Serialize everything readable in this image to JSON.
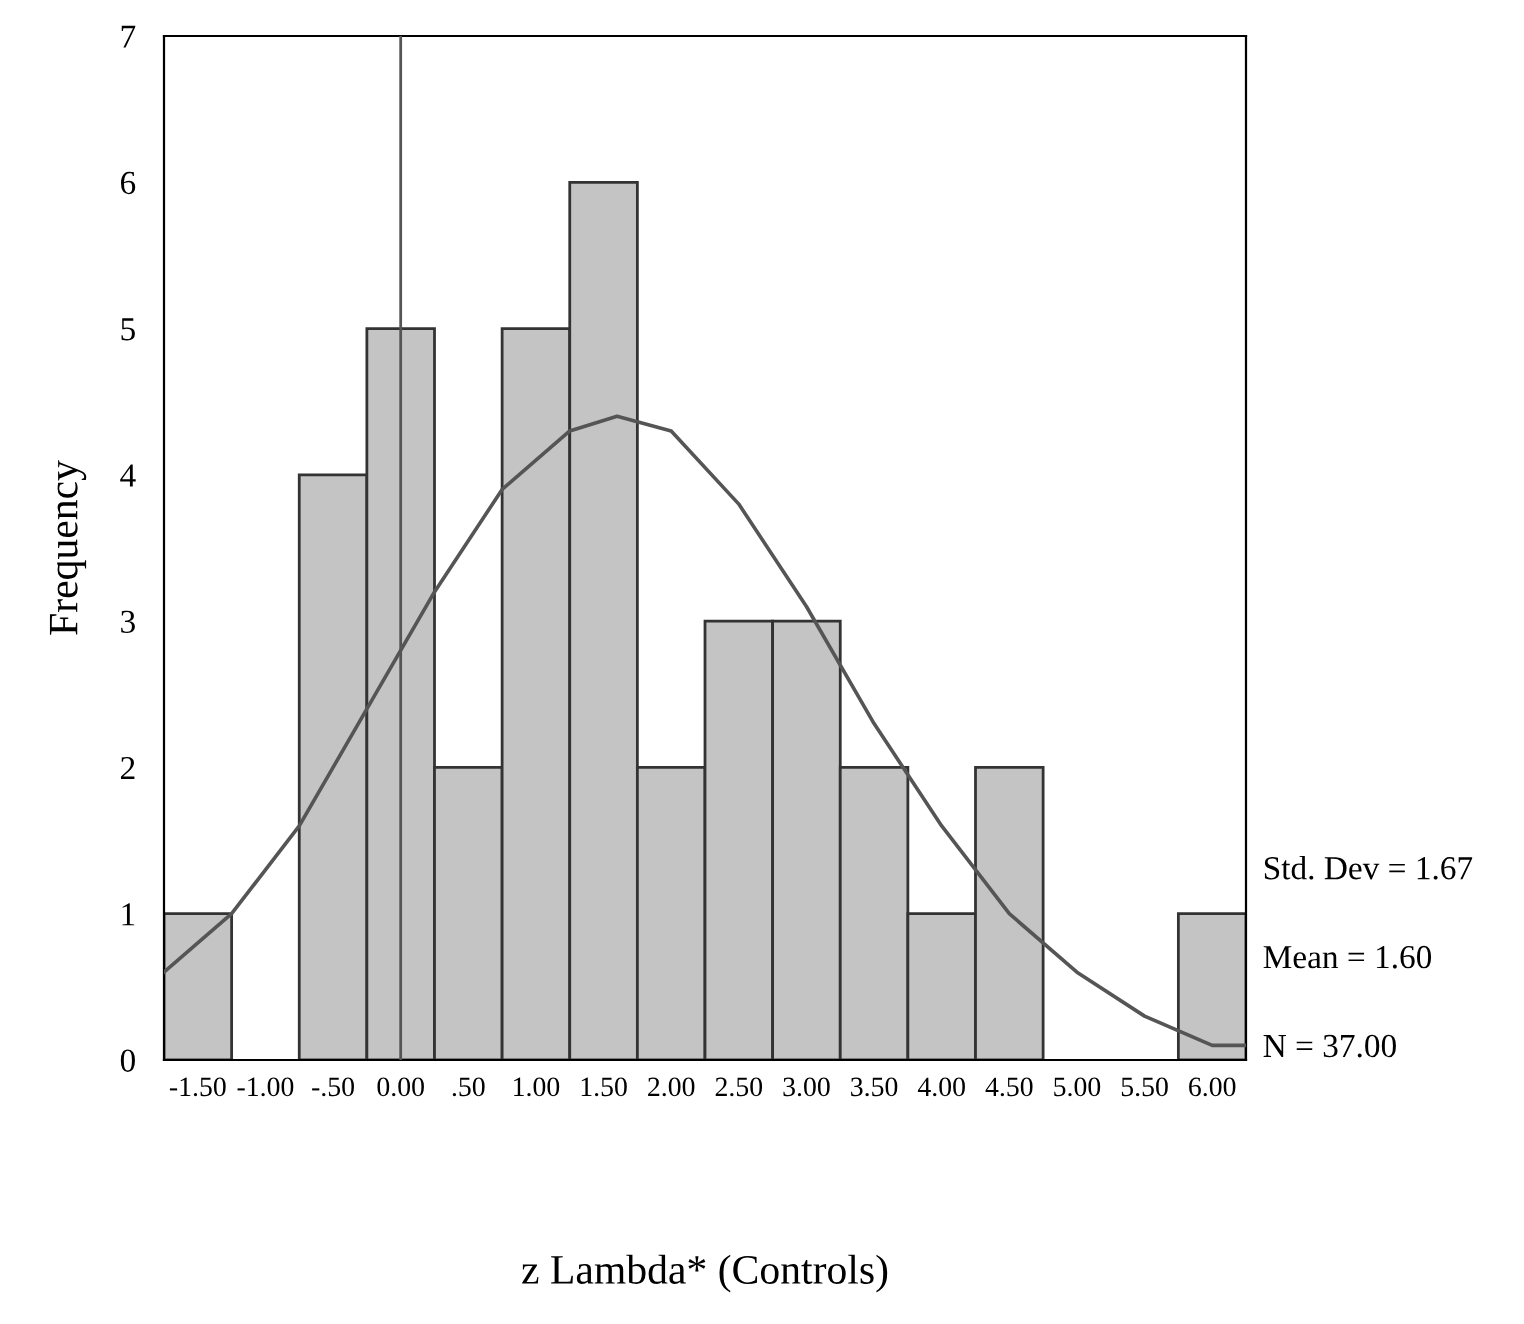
{
  "chart_data": {
    "type": "histogram",
    "xlabel": "z Lambda* (Controls)",
    "ylabel": "Frequency",
    "bins": [
      -1.75,
      -1.25,
      -0.75,
      -0.25,
      0.25,
      0.75,
      1.25,
      1.75,
      2.25,
      2.75,
      3.25,
      3.75,
      4.25,
      4.75,
      5.25,
      5.75,
      6.25
    ],
    "values": [
      1,
      0,
      4,
      5,
      2,
      5,
      6,
      2,
      3,
      3,
      2,
      1,
      2,
      0,
      0,
      1
    ],
    "color": "#c4c4c4",
    "series": [
      {
        "type": "line",
        "color": "#555555",
        "x": [
          -1.75,
          -1.25,
          -0.75,
          -0.25,
          0.25,
          0.75,
          1.25,
          1.6,
          2.0,
          2.5,
          3.0,
          3.5,
          4.0,
          4.5,
          5.0,
          5.5,
          6.0,
          6.25
        ],
        "values": [
          0.6,
          1.0,
          1.6,
          2.4,
          3.2,
          3.9,
          4.3,
          4.4,
          4.3,
          3.8,
          3.1,
          2.3,
          1.6,
          1.0,
          0.6,
          0.3,
          0.1,
          0.1
        ]
      }
    ],
    "ref_lines": [
      {
        "axis": "x",
        "value": 0,
        "color": "#555555"
      }
    ],
    "xlim": [
      -1.75,
      6.25
    ],
    "ylim": [
      0,
      7
    ],
    "xticks": [
      {
        "value": -1.5,
        "label": "-1.50"
      },
      {
        "value": -1.0,
        "label": "-1.00"
      },
      {
        "value": -0.5,
        "label": "-.50"
      },
      {
        "value": 0.0,
        "label": "0.00"
      },
      {
        "value": 0.5,
        "label": ".50"
      },
      {
        "value": 1.0,
        "label": "1.00"
      },
      {
        "value": 1.5,
        "label": "1.50"
      },
      {
        "value": 2.0,
        "label": "2.00"
      },
      {
        "value": 2.5,
        "label": "2.50"
      },
      {
        "value": 3.0,
        "label": "3.00"
      },
      {
        "value": 3.5,
        "label": "3.50"
      },
      {
        "value": 4.0,
        "label": "4.00"
      },
      {
        "value": 4.5,
        "label": "4.50"
      },
      {
        "value": 5.0,
        "label": "5.00"
      },
      {
        "value": 5.5,
        "label": "5.50"
      },
      {
        "value": 6.0,
        "label": "6.00"
      }
    ],
    "yticks": [
      0,
      1,
      2,
      3,
      4,
      5,
      6,
      7
    ],
    "annotations": [
      "Std. Dev = 1.67",
      "Mean = 1.60",
      "N = 37.00"
    ],
    "grid": false,
    "legend": false
  }
}
